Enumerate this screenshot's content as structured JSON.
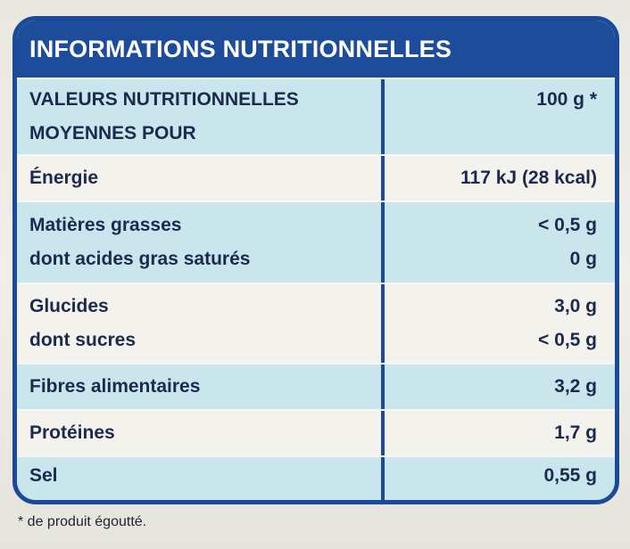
{
  "title": "INFORMATIONS NUTRITIONNELLES",
  "header_row": {
    "left": [
      "VALEURS NUTRITIONNELLES",
      "MOYENNES POUR"
    ],
    "right": "100 g *"
  },
  "rows": [
    {
      "left": [
        "Énergie"
      ],
      "right": [
        "117 kJ (28 kcal)"
      ]
    },
    {
      "left": [
        "Matières grasses",
        "dont acides gras saturés"
      ],
      "right": [
        "< 0,5 g",
        "0 g"
      ]
    },
    {
      "left": [
        "Glucides",
        "dont sucres"
      ],
      "right": [
        "3,0 g",
        "< 0,5 g"
      ]
    },
    {
      "left": [
        "Fibres alimentaires"
      ],
      "right": [
        "3,2 g"
      ]
    },
    {
      "left": [
        "Protéines"
      ],
      "right": [
        "1,7 g"
      ]
    },
    {
      "left": [
        "Sel"
      ],
      "right": [
        "0,55 g"
      ]
    }
  ],
  "footnote": "* de produit égoutté.",
  "colors": {
    "brand_blue": "#1d4c9b",
    "shaded_row": "#c8e6ec",
    "light_row": "#f3f2ec"
  }
}
